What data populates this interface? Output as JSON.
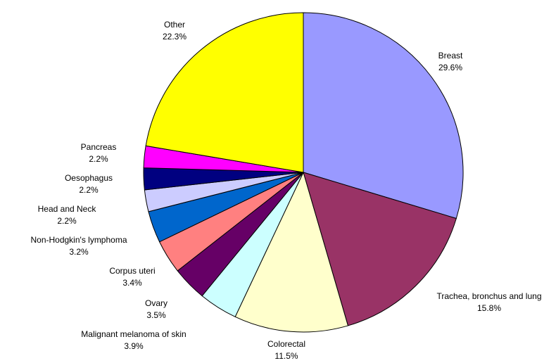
{
  "chart_data": {
    "type": "pie",
    "categories": [
      "Breast",
      "Trachea, bronchus and lung",
      "Colorectal",
      "Malignant melanoma of skin",
      "Ovary",
      "Corpus uteri",
      "Non-Hodgkin's lymphoma",
      "Head and Neck",
      "Oesophagus",
      "Pancreas",
      "Other"
    ],
    "values": [
      29.6,
      15.8,
      11.5,
      3.9,
      3.5,
      3.4,
      3.2,
      2.2,
      2.2,
      2.2,
      22.3
    ],
    "value_labels": [
      "29.6%",
      "15.8%",
      "11.5%",
      "3.9%",
      "3.5%",
      "3.4%",
      "3.2%",
      "2.2%",
      "2.2%",
      "2.2%",
      "22.3%"
    ],
    "colors": [
      "#9999ff",
      "#993366",
      "#ffffcc",
      "#ccffff",
      "#660066",
      "#ff8080",
      "#0066cc",
      "#ccccff",
      "#000080",
      "#ff00ff",
      "#ffff00"
    ]
  }
}
